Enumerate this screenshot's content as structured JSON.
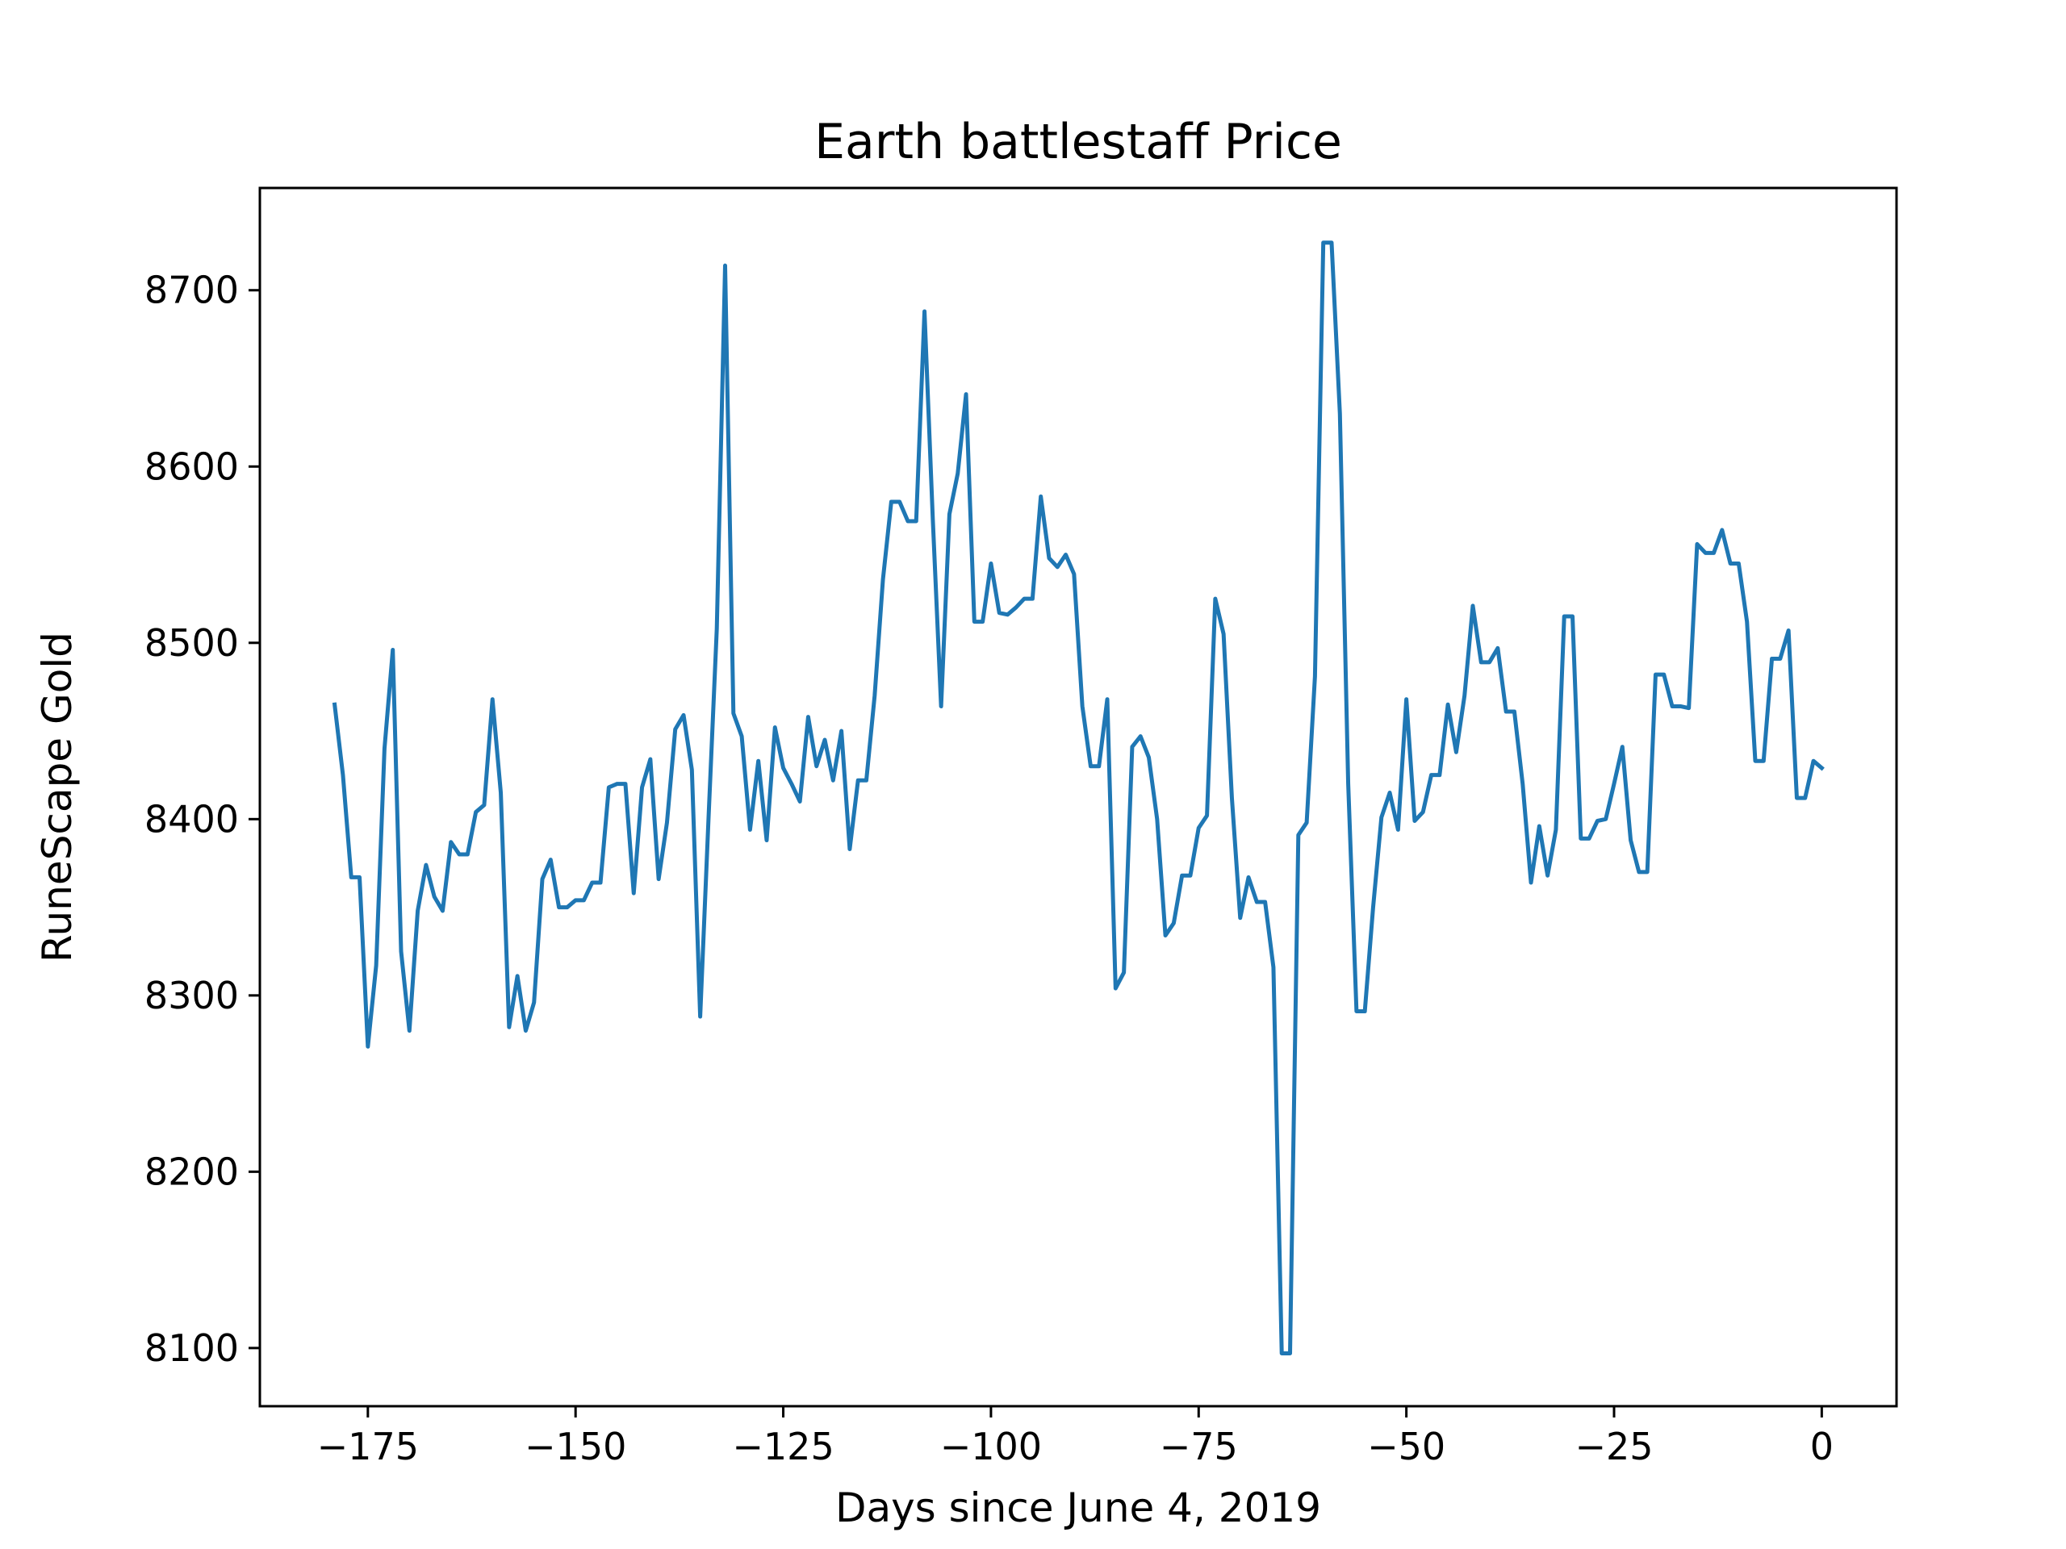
{
  "chart_data": {
    "type": "line",
    "title": "Earth battlestaff Price",
    "xlabel": "Days since June 4, 2019",
    "ylabel": "RuneScape Gold",
    "xlim": [
      -188,
      9
    ],
    "ylim": [
      8067,
      8758
    ],
    "xticks": [
      -175,
      -150,
      -125,
      -100,
      -75,
      -50,
      -25,
      0
    ],
    "xtick_labels": [
      "−175",
      "−150",
      "−125",
      "−100",
      "−75",
      "−50",
      "−25",
      "0"
    ],
    "yticks": [
      8100,
      8200,
      8300,
      8400,
      8500,
      8600,
      8700
    ],
    "ytick_labels": [
      "8100",
      "8200",
      "8300",
      "8400",
      "8500",
      "8600",
      "8700"
    ],
    "grid": false,
    "legend": "none",
    "series": [
      {
        "color": "#1f77b4",
        "x": [
          -179,
          -178,
          -177,
          -176,
          -175,
          -174,
          -173,
          -172,
          -171,
          -170,
          -169,
          -168,
          -167,
          -166,
          -165,
          -164,
          -163,
          -162,
          -161,
          -160,
          -159,
          -158,
          -157,
          -156,
          -155,
          -154,
          -153,
          -152,
          -151,
          -150,
          -149,
          -148,
          -147,
          -146,
          -145,
          -144,
          -143,
          -142,
          -141,
          -140,
          -139,
          -138,
          -137,
          -136,
          -135,
          -134,
          -133,
          -132,
          -131,
          -130,
          -129,
          -128,
          -127,
          -126,
          -125,
          -124,
          -123,
          -122,
          -121,
          -120,
          -119,
          -118,
          -117,
          -116,
          -115,
          -114,
          -113,
          -112,
          -111,
          -110,
          -109,
          -108,
          -107,
          -106,
          -105,
          -104,
          -103,
          -102,
          -101,
          -100,
          -99,
          -98,
          -97,
          -96,
          -95,
          -94,
          -93,
          -92,
          -91,
          -90,
          -89,
          -88,
          -87,
          -86,
          -85,
          -84,
          -83,
          -82,
          -81,
          -80,
          -79,
          -78,
          -77,
          -76,
          -75,
          -74,
          -73,
          -72,
          -71,
          -70,
          -69,
          -68,
          -67,
          -66,
          -65,
          -64,
          -63,
          -62,
          -61,
          -60,
          -59,
          -58,
          -57,
          -56,
          -55,
          -54,
          -53,
          -52,
          -51,
          -50,
          -49,
          -48,
          -47,
          -46,
          -45,
          -44,
          -43,
          -42,
          -41,
          -40,
          -39,
          -38,
          -37,
          -36,
          -35,
          -34,
          -33,
          -32,
          -31,
          -30,
          -29,
          -28,
          -27,
          -26,
          -25,
          -24,
          -23,
          -22,
          -21,
          -20,
          -19,
          -18,
          -17,
          -16,
          -15,
          -14,
          -13,
          -12,
          -11,
          -10,
          -9,
          -8,
          -7,
          -6,
          -5,
          -4,
          -3,
          -2,
          -1,
          0
        ],
        "y": [
          8465,
          8425,
          8367,
          8367,
          8271,
          8317,
          8440,
          8496,
          8325,
          8280,
          8348,
          8374,
          8356,
          8348,
          8387,
          8380,
          8380,
          8404,
          8408,
          8468,
          8415,
          8282,
          8311,
          8280,
          8296,
          8366,
          8377,
          8350,
          8350,
          8354,
          8354,
          8364,
          8364,
          8418,
          8420,
          8420,
          8358,
          8418,
          8434,
          8366,
          8398,
          8451,
          8459,
          8428,
          8288,
          8400,
          8508,
          8714,
          8460,
          8447,
          8394,
          8433,
          8388,
          8452,
          8429,
          8420,
          8410,
          8458,
          8430,
          8445,
          8422,
          8450,
          8383,
          8422,
          8422,
          8470,
          8536,
          8580,
          8580,
          8569,
          8569,
          8688,
          8570,
          8464,
          8573,
          8596,
          8641,
          8512,
          8512,
          8545,
          8517,
          8516,
          8520,
          8525,
          8525,
          8583,
          8548,
          8543,
          8550,
          8539,
          8464,
          8430,
          8430,
          8468,
          8304,
          8313,
          8441,
          8447,
          8435,
          8400,
          8334,
          8341,
          8368,
          8368,
          8395,
          8402,
          8525,
          8505,
          8412,
          8344,
          8367,
          8353,
          8353,
          8316,
          8097,
          8097,
          8391,
          8398,
          8481,
          8727,
          8727,
          8630,
          8420,
          8291,
          8291,
          8350,
          8401,
          8415,
          8394,
          8468,
          8399,
          8404,
          8425,
          8425,
          8465,
          8438,
          8470,
          8521,
          8489,
          8489,
          8497,
          8461,
          8461,
          8420,
          8364,
          8396,
          8368,
          8394,
          8515,
          8515,
          8389,
          8389,
          8399,
          8400,
          8420,
          8441,
          8388,
          8370,
          8370,
          8482,
          8482,
          8464,
          8464,
          8463,
          8556,
          8551,
          8551,
          8564,
          8545,
          8545,
          8512,
          8433,
          8433,
          8491,
          8491,
          8507,
          8412,
          8412,
          8433,
          8429
        ]
      }
    ]
  }
}
